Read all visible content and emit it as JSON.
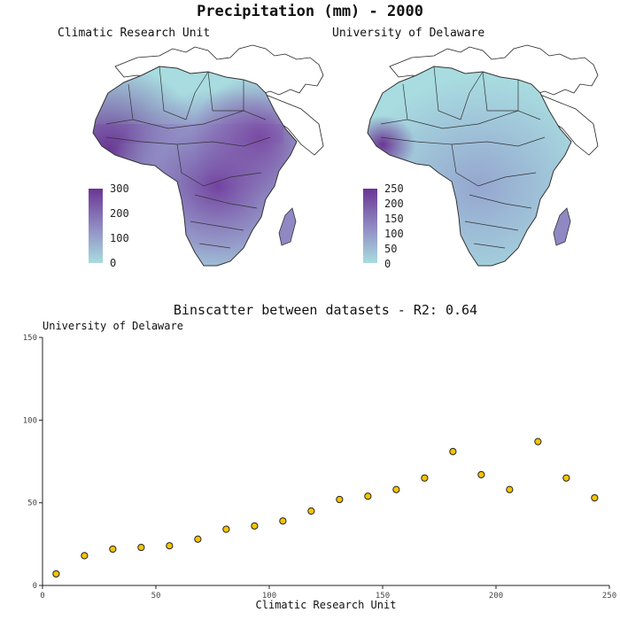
{
  "title": "Precipitation (mm) - 2000",
  "colors": {
    "low": "#a8dce0",
    "mid": "#8f88c2",
    "high": "#6a3594",
    "point_fill": "#f5c400",
    "border": "#333333"
  },
  "maps": [
    {
      "name": "Climatic Research Unit",
      "legend_ticks": [
        "300",
        "200",
        "100",
        "0"
      ]
    },
    {
      "name": "University of Delaware",
      "legend_ticks": [
        "250",
        "200",
        "150",
        "100",
        "50",
        "0"
      ]
    }
  ],
  "chart_data": {
    "type": "scatter",
    "title": "Binscatter between datasets - R2: 0.64",
    "xlabel": "Climatic Research Unit",
    "ylabel": "University of Delaware",
    "xlim": [
      0,
      250
    ],
    "ylim": [
      0,
      150
    ],
    "x_ticks": [
      "0",
      "50",
      "100",
      "150",
      "200",
      "250"
    ],
    "y_ticks": [
      "0",
      "50",
      "100",
      "150"
    ],
    "x": [
      6,
      18.5,
      31,
      43.5,
      56,
      68.5,
      81,
      93.5,
      106,
      118.5,
      131,
      143.5,
      156,
      168.5,
      181,
      193.5,
      206,
      218.5,
      231,
      243.5
    ],
    "y": [
      7,
      18,
      22,
      23,
      24,
      28,
      34,
      36,
      39,
      45,
      52,
      54,
      58,
      65,
      81,
      67,
      58,
      87,
      65,
      53
    ]
  }
}
